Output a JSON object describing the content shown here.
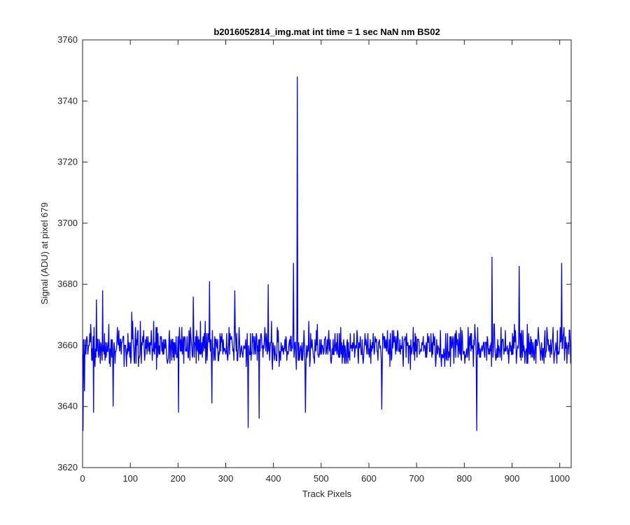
{
  "chart_data": {
    "type": "line",
    "title": "b2016052814_img.mat int time = 1 sec  NaN nm BS02",
    "xlabel": "Track Pixels",
    "ylabel": "Signal (ADU) at pixel 679",
    "xlim": [
      0,
      1024
    ],
    "ylim": [
      3620,
      3760
    ],
    "xticks": [
      0,
      100,
      200,
      300,
      400,
      500,
      600,
      700,
      800,
      900,
      1000
    ],
    "yticks": [
      3620,
      3640,
      3660,
      3680,
      3700,
      3720,
      3740,
      3760
    ],
    "grid": false,
    "legend": "none",
    "line_color": "#0000ff",
    "noise": {
      "mean": 3659.5,
      "min": 3632,
      "max": 3689,
      "count": 1024
    },
    "x_step": 1,
    "key_points": [
      {
        "x": 1,
        "y": 3632
      },
      {
        "x": 4,
        "y": 3645
      },
      {
        "x": 17,
        "y": 3667
      },
      {
        "x": 23,
        "y": 3638
      },
      {
        "x": 29,
        "y": 3675
      },
      {
        "x": 42,
        "y": 3678
      },
      {
        "x": 64,
        "y": 3640
      },
      {
        "x": 201,
        "y": 3638
      },
      {
        "x": 232,
        "y": 3676
      },
      {
        "x": 266,
        "y": 3681
      },
      {
        "x": 271,
        "y": 3641
      },
      {
        "x": 319,
        "y": 3678
      },
      {
        "x": 347,
        "y": 3633
      },
      {
        "x": 370,
        "y": 3636
      },
      {
        "x": 389,
        "y": 3680
      },
      {
        "x": 442,
        "y": 3687
      },
      {
        "x": 448,
        "y": 3652
      },
      {
        "x": 450,
        "y": 3748
      },
      {
        "x": 452,
        "y": 3655
      },
      {
        "x": 467,
        "y": 3638
      },
      {
        "x": 627,
        "y": 3639
      },
      {
        "x": 826,
        "y": 3632
      },
      {
        "x": 858,
        "y": 3689
      },
      {
        "x": 915,
        "y": 3686
      },
      {
        "x": 1004,
        "y": 3687
      },
      {
        "x": 1023,
        "y": 3654
      }
    ]
  }
}
